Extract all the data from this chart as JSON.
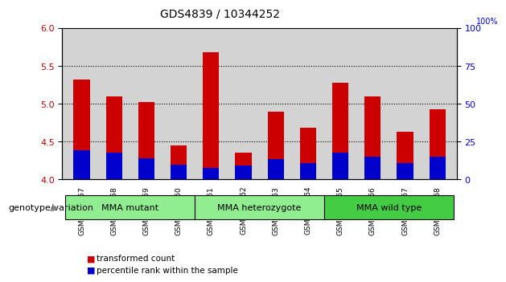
{
  "title": "GDS4839 / 10344252",
  "samples": [
    "GSM1007957",
    "GSM1007958",
    "GSM1007959",
    "GSM1007960",
    "GSM1007961",
    "GSM1007962",
    "GSM1007963",
    "GSM1007964",
    "GSM1007965",
    "GSM1007966",
    "GSM1007967",
    "GSM1007968"
  ],
  "transformed_counts": [
    5.32,
    5.1,
    5.02,
    4.45,
    5.68,
    4.35,
    4.9,
    4.68,
    5.28,
    5.1,
    4.63,
    4.93
  ],
  "percentile_ranks": [
    4.39,
    4.35,
    4.28,
    4.2,
    4.15,
    4.18,
    4.27,
    4.22,
    4.35,
    4.3,
    4.22,
    4.3
  ],
  "bar_bottom": 4.0,
  "red_color": "#cc0000",
  "blue_color": "#0000cc",
  "ylim_left": [
    4.0,
    6.0
  ],
  "ylim_right": [
    0,
    100
  ],
  "yticks_left": [
    4.0,
    4.5,
    5.0,
    5.5,
    6.0
  ],
  "yticks_right": [
    0,
    25,
    50,
    75,
    100
  ],
  "groups": [
    {
      "label": "MMA mutant",
      "start": 0,
      "end": 4,
      "color": "#90ee90"
    },
    {
      "label": "MMA heterozygote",
      "start": 4,
      "end": 8,
      "color": "#90ee90"
    },
    {
      "label": "MMA wild type",
      "start": 8,
      "end": 12,
      "color": "#44cc44"
    }
  ],
  "group_label": "genotype/variation",
  "legend_red": "transformed count",
  "legend_blue": "percentile rank within the sample",
  "bar_width": 0.5,
  "plot_bg": "#d3d3d3",
  "spine_color": "#000000"
}
